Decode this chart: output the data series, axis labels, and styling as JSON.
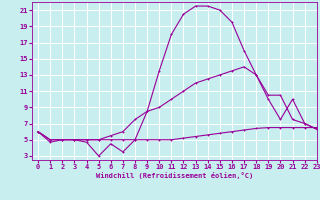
{
  "xlabel": "Windchill (Refroidissement éolien,°C)",
  "background_color": "#c8eef0",
  "grid_color": "#ffffff",
  "line_color": "#990099",
  "x_ticks": [
    0,
    1,
    2,
    3,
    4,
    5,
    6,
    7,
    8,
    9,
    10,
    11,
    12,
    13,
    14,
    15,
    16,
    17,
    18,
    19,
    20,
    21,
    22,
    23
  ],
  "y_ticks": [
    3,
    5,
    7,
    9,
    11,
    13,
    15,
    17,
    19,
    21
  ],
  "ylim": [
    2.5,
    22
  ],
  "xlim": [
    -0.5,
    23
  ],
  "series1_x": [
    0,
    1,
    2,
    3,
    4,
    5,
    6,
    7,
    8,
    9,
    10,
    11,
    12,
    13,
    14,
    15,
    16,
    17,
    18,
    19,
    20,
    21,
    22,
    23
  ],
  "series1_y": [
    6,
    5,
    5,
    5,
    5,
    5,
    5,
    5,
    5,
    5,
    5,
    5,
    5.2,
    5.4,
    5.6,
    5.8,
    6,
    6.2,
    6.4,
    6.5,
    6.5,
    6.5,
    6.5,
    6.5
  ],
  "series2_x": [
    0,
    1,
    2,
    3,
    4,
    5,
    6,
    7,
    8,
    9,
    10,
    11,
    12,
    13,
    14,
    15,
    16,
    17,
    18,
    19,
    20,
    21,
    22,
    23
  ],
  "series2_y": [
    6,
    4.7,
    5,
    5,
    4.7,
    3,
    4.5,
    3.5,
    5,
    8.5,
    13.5,
    18,
    20.5,
    21.5,
    21.5,
    21,
    19.5,
    16,
    13,
    10,
    7.5,
    10,
    7,
    6.3
  ],
  "series3_x": [
    0,
    1,
    2,
    3,
    4,
    5,
    6,
    7,
    8,
    9,
    10,
    11,
    12,
    13,
    14,
    15,
    16,
    17,
    18,
    19,
    20,
    21,
    22,
    23
  ],
  "series3_y": [
    6,
    5,
    5,
    5,
    5,
    5,
    5.5,
    6,
    7.5,
    8.5,
    9,
    10,
    11,
    12,
    12.5,
    13,
    13.5,
    14,
    13,
    10.5,
    10.5,
    7.5,
    7,
    6.3
  ]
}
